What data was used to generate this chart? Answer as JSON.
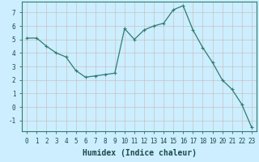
{
  "x": [
    0,
    1,
    2,
    3,
    4,
    5,
    6,
    7,
    8,
    9,
    10,
    11,
    12,
    13,
    14,
    15,
    16,
    17,
    18,
    19,
    20,
    21,
    22,
    23
  ],
  "y": [
    5.1,
    5.1,
    4.5,
    4.0,
    3.7,
    2.7,
    2.2,
    2.3,
    2.4,
    2.5,
    5.8,
    5.0,
    5.7,
    6.0,
    6.2,
    7.2,
    7.5,
    5.7,
    4.4,
    3.3,
    2.0,
    1.3,
    0.2,
    -1.5
  ],
  "line_color": "#2e7d6e",
  "marker": "+",
  "marker_size": 3,
  "bg_color": "#cceeff",
  "grid_color_major": "#c8b8b8",
  "xlabel": "Humidex (Indice chaleur)",
  "xlabel_fontsize": 7,
  "ylabel_ticks": [
    -1,
    0,
    1,
    2,
    3,
    4,
    5,
    6,
    7
  ],
  "ylim": [
    -1.8,
    7.8
  ],
  "xlim": [
    -0.5,
    23.5
  ],
  "xtick_labels": [
    "0",
    "1",
    "2",
    "3",
    "4",
    "5",
    "6",
    "7",
    "8",
    "9",
    "10",
    "11",
    "12",
    "13",
    "14",
    "15",
    "16",
    "17",
    "18",
    "19",
    "20",
    "21",
    "22",
    "23"
  ],
  "tick_fontsize": 5.5,
  "line_width": 0.9
}
